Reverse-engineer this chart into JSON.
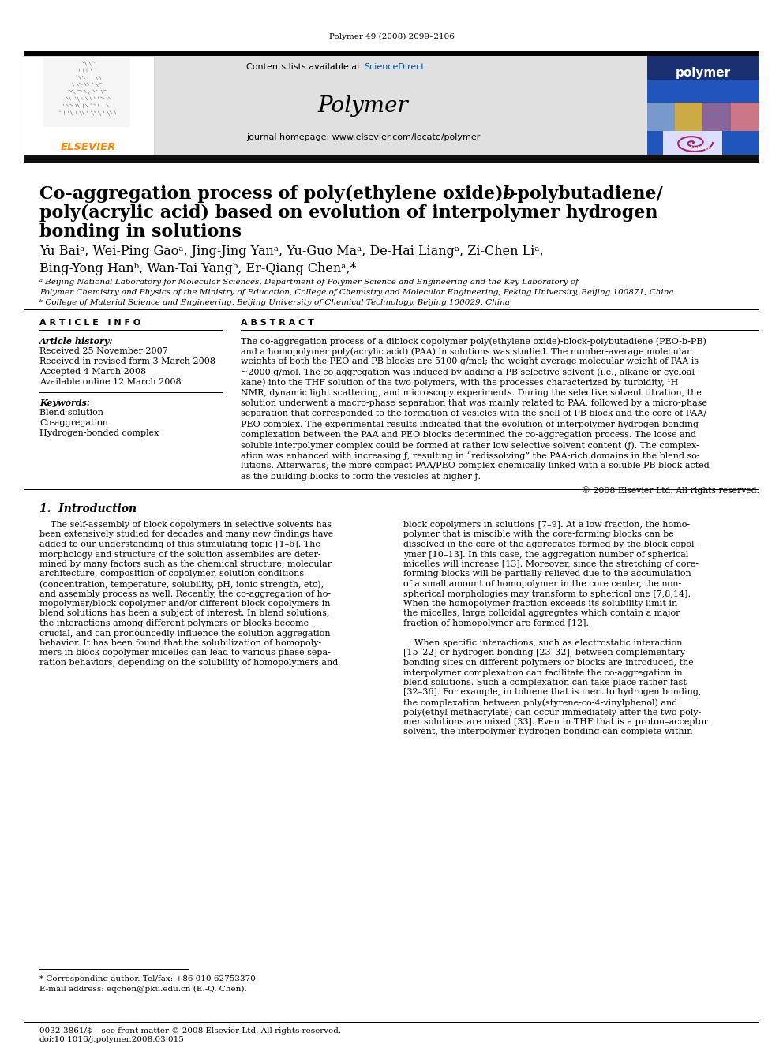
{
  "journal_ref": "Polymer 49 (2008) 2099–2106",
  "contents_text": "Contents lists available at ",
  "sciencedirect": "ScienceDirect",
  "journal_name": "Polymer",
  "journal_homepage": "journal homepage: www.elsevier.com/locate/polymer",
  "article_info_header": "A R T I C L E   I N F O",
  "abstract_header": "A B S T R A C T",
  "article_history": "Article history:",
  "received1": "Received 25 November 2007",
  "received2": "Received in revised form 3 March 2008",
  "accepted": "Accepted 4 March 2008",
  "available": "Available online 12 March 2008",
  "kw_header": "Keywords:",
  "kw1": "Blend solution",
  "kw2": "Co-aggregation",
  "kw3": "Hydrogen-bonded complex",
  "copyright": "© 2008 Elsevier Ltd. All rights reserved.",
  "footnote1": "* Corresponding author. Tel/fax: +86 010 62753370.",
  "footnote2": "E-mail address: eqchen@pku.edu.cn (E.-Q. Chen).",
  "footer1": "0032-3861/$ – see front matter © 2008 Elsevier Ltd. All rights reserved.",
  "footer2": "doi:10.1016/j.polymer.2008.03.015",
  "elsevier_color": "#ff8800",
  "scidir_color": "#0055aa",
  "cover_blue": "#2244aa",
  "bg_color": "#ffffff",
  "gray_header": "#e0e0e0",
  "black": "#000000"
}
